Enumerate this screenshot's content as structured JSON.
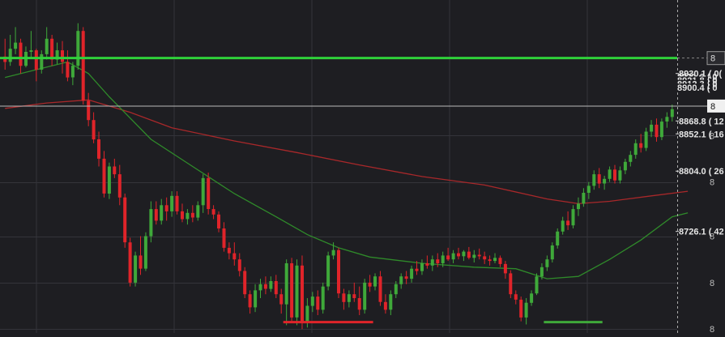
{
  "colors": {
    "background": "#1e1e22",
    "grid": "#34343a",
    "up": "#3fa93a",
    "down": "#e0242a",
    "ma_fast": "#2f8a2a",
    "ma_slow": "#a8282a",
    "h_line_green": "#2fd13a",
    "crosshair": "#bbbbbb",
    "label_text": "#e6e6e6",
    "label_bg": "#1e1e22"
  },
  "chart_data": {
    "type": "candlestick",
    "title": "",
    "xlabel": "",
    "ylabel": "",
    "ylim": [
      8595,
      9025
    ],
    "grid": true,
    "legend": "none",
    "price_labels": [
      {
        "id": "p8930",
        "value": 8930.1,
        "text": "8930.1 ( 0("
      },
      {
        "id": "p8868",
        "value": 8868.8,
        "text": "8868.8 ( 12"
      },
      {
        "id": "p8852",
        "value": 8852.1,
        "text": "8852.1 ( 16"
      },
      {
        "id": "p8804",
        "value": 8804.0,
        "text": "8804.0 ( 26"
      },
      {
        "id": "p8726",
        "value": 8726.1,
        "text": "8726.1 ( 42"
      }
    ],
    "stacked_labels_text": [
      "8931.6 ( 0",
      "8921.8 ( 0",
      "8912.3 ( 0",
      "8900.4 ( 0"
    ],
    "crosshair_value": 8888.0,
    "crosshair_label": "8",
    "horizontal_line_value": 8950.0,
    "horizontal_line_label": "8",
    "axis_tick_values": [
      8950,
      8850,
      8790,
      8720,
      8660,
      8600
    ],
    "axis_tick_labels": [
      "8",
      "8",
      "8",
      "8",
      "8",
      "8"
    ],
    "support_lines": [
      {
        "color": "down",
        "value": 8609,
        "from": 54,
        "to": 70
      },
      {
        "color": "up",
        "value": 8609,
        "from": 104,
        "to": 114
      }
    ],
    "candles": [
      [
        8952,
        8975,
        8935,
        8945
      ],
      [
        8945,
        8980,
        8940,
        8962
      ],
      [
        8962,
        8990,
        8955,
        8970
      ],
      [
        8970,
        8975,
        8930,
        8940
      ],
      [
        8940,
        8965,
        8938,
        8958
      ],
      [
        8958,
        8985,
        8950,
        8960
      ],
      [
        8960,
        8962,
        8920,
        8935
      ],
      [
        8935,
        8960,
        8930,
        8955
      ],
      [
        8955,
        8990,
        8948,
        8975
      ],
      [
        8975,
        8980,
        8940,
        8948
      ],
      [
        8948,
        8970,
        8942,
        8960
      ],
      [
        8960,
        8972,
        8930,
        8945
      ],
      [
        8945,
        8960,
        8920,
        8925
      ],
      [
        8925,
        8945,
        8915,
        8940
      ],
      [
        8940,
        8995,
        8935,
        8985
      ],
      [
        8985,
        8990,
        8890,
        8895
      ],
      [
        8895,
        8905,
        8862,
        8870
      ],
      [
        8870,
        8880,
        8840,
        8845
      ],
      [
        8845,
        8855,
        8810,
        8820
      ],
      [
        8820,
        8830,
        8770,
        8775
      ],
      [
        8775,
        8815,
        8768,
        8810
      ],
      [
        8810,
        8820,
        8795,
        8800
      ],
      [
        8800,
        8812,
        8760,
        8770
      ],
      [
        8770,
        8775,
        8705,
        8712
      ],
      [
        8712,
        8718,
        8655,
        8660
      ],
      [
        8660,
        8700,
        8655,
        8695
      ],
      [
        8695,
        8720,
        8670,
        8678
      ],
      [
        8678,
        8725,
        8675,
        8720
      ],
      [
        8720,
        8765,
        8712,
        8755
      ],
      [
        8755,
        8765,
        8735,
        8740
      ],
      [
        8740,
        8768,
        8735,
        8760
      ],
      [
        8760,
        8770,
        8740,
        8752
      ],
      [
        8752,
        8778,
        8745,
        8772
      ],
      [
        8772,
        8778,
        8748,
        8752
      ],
      [
        8752,
        8762,
        8738,
        8742
      ],
      [
        8742,
        8755,
        8735,
        8750
      ],
      [
        8750,
        8760,
        8738,
        8744
      ],
      [
        8744,
        8765,
        8740,
        8760
      ],
      [
        8760,
        8800,
        8750,
        8795
      ],
      [
        8795,
        8802,
        8748,
        8755
      ],
      [
        8755,
        8760,
        8742,
        8748
      ],
      [
        8748,
        8752,
        8725,
        8730
      ],
      [
        8730,
        8738,
        8700,
        8705
      ],
      [
        8705,
        8712,
        8690,
        8698
      ],
      [
        8698,
        8712,
        8682,
        8690
      ],
      [
        8690,
        8698,
        8668,
        8675
      ],
      [
        8675,
        8680,
        8640,
        8645
      ],
      [
        8645,
        8650,
        8620,
        8628
      ],
      [
        8628,
        8658,
        8622,
        8650
      ],
      [
        8650,
        8665,
        8640,
        8658
      ],
      [
        8658,
        8668,
        8645,
        8652
      ],
      [
        8652,
        8668,
        8648,
        8662
      ],
      [
        8662,
        8670,
        8640,
        8645
      ],
      [
        8645,
        8652,
        8620,
        8632
      ],
      [
        8632,
        8690,
        8605,
        8685
      ],
      [
        8685,
        8692,
        8610,
        8615
      ],
      [
        8615,
        8690,
        8605,
        8682
      ],
      [
        8682,
        8695,
        8600,
        8610
      ],
      [
        8610,
        8640,
        8602,
        8630
      ],
      [
        8630,
        8648,
        8622,
        8642
      ],
      [
        8642,
        8650,
        8618,
        8625
      ],
      [
        8625,
        8660,
        8620,
        8655
      ],
      [
        8655,
        8700,
        8650,
        8695
      ],
      [
        8695,
        8712,
        8690,
        8702
      ],
      [
        8702,
        8705,
        8640,
        8646
      ],
      [
        8646,
        8652,
        8625,
        8635
      ],
      [
        8635,
        8650,
        8628,
        8645
      ],
      [
        8645,
        8660,
        8635,
        8640
      ],
      [
        8640,
        8655,
        8618,
        8625
      ],
      [
        8625,
        8665,
        8620,
        8660
      ],
      [
        8660,
        8670,
        8648,
        8655
      ],
      [
        8655,
        8672,
        8650,
        8668
      ],
      [
        8668,
        8675,
        8630,
        8635
      ],
      [
        8635,
        8645,
        8620,
        8625
      ],
      [
        8625,
        8650,
        8618,
        8645
      ],
      [
        8645,
        8662,
        8640,
        8658
      ],
      [
        8658,
        8672,
        8652,
        8668
      ],
      [
        8668,
        8675,
        8658,
        8665
      ],
      [
        8665,
        8682,
        8660,
        8678
      ],
      [
        8678,
        8688,
        8670,
        8675
      ],
      [
        8675,
        8690,
        8670,
        8685
      ],
      [
        8685,
        8695,
        8678,
        8682
      ],
      [
        8682,
        8695,
        8675,
        8690
      ],
      [
        8690,
        8698,
        8680,
        8685
      ],
      [
        8685,
        8700,
        8680,
        8695
      ],
      [
        8695,
        8705,
        8688,
        8690
      ],
      [
        8690,
        8702,
        8685,
        8698
      ],
      [
        8698,
        8705,
        8690,
        8694
      ],
      [
        8694,
        8702,
        8688,
        8700
      ],
      [
        8700,
        8706,
        8690,
        8692
      ],
      [
        8692,
        8702,
        8686,
        8696
      ],
      [
        8696,
        8704,
        8690,
        8694
      ],
      [
        8694,
        8700,
        8684,
        8690
      ],
      [
        8690,
        8695,
        8682,
        8688
      ],
      [
        8688,
        8698,
        8685,
        8692
      ],
      [
        8692,
        8695,
        8680,
        8684
      ],
      [
        8684,
        8688,
        8665,
        8672
      ],
      [
        8672,
        8676,
        8640,
        8645
      ],
      [
        8645,
        8650,
        8632,
        8638
      ],
      [
        8638,
        8642,
        8610,
        8615
      ],
      [
        8615,
        8640,
        8606,
        8634
      ],
      [
        8634,
        8650,
        8630,
        8646
      ],
      [
        8646,
        8672,
        8644,
        8668
      ],
      [
        8668,
        8685,
        8664,
        8680
      ],
      [
        8680,
        8695,
        8675,
        8690
      ],
      [
        8690,
        8712,
        8686,
        8708
      ],
      [
        8708,
        8730,
        8704,
        8726
      ],
      [
        8726,
        8745,
        8722,
        8740
      ],
      [
        8740,
        8752,
        8728,
        8734
      ],
      [
        8734,
        8760,
        8730,
        8755
      ],
      [
        8755,
        8770,
        8746,
        8762
      ],
      [
        8762,
        8782,
        8758,
        8776
      ],
      [
        8776,
        8790,
        8768,
        8785
      ],
      [
        8785,
        8805,
        8780,
        8800
      ],
      [
        8800,
        8808,
        8782,
        8788
      ],
      [
        8788,
        8798,
        8780,
        8794
      ],
      [
        8794,
        8810,
        8790,
        8806
      ],
      [
        8806,
        8812,
        8788,
        8792
      ],
      [
        8792,
        8810,
        8788,
        8805
      ],
      [
        8805,
        8820,
        8800,
        8816
      ],
      [
        8816,
        8830,
        8810,
        8825
      ],
      [
        8825,
        8845,
        8820,
        8840
      ],
      [
        8840,
        8852,
        8828,
        8834
      ],
      [
        8834,
        8860,
        8830,
        8855
      ],
      [
        8855,
        8870,
        8848,
        8864
      ],
      [
        8864,
        8872,
        8842,
        8848
      ],
      [
        8848,
        8872,
        8844,
        8868
      ],
      [
        8868,
        8880,
        8860,
        8874
      ],
      [
        8874,
        8890,
        8868,
        8884
      ]
    ],
    "ma_fast": [
      [
        0,
        8925
      ],
      [
        6,
        8935
      ],
      [
        12,
        8945
      ],
      [
        16,
        8930
      ],
      [
        20,
        8900
      ],
      [
        28,
        8845
      ],
      [
        36,
        8810
      ],
      [
        44,
        8775
      ],
      [
        52,
        8745
      ],
      [
        58,
        8722
      ],
      [
        64,
        8705
      ],
      [
        70,
        8693
      ],
      [
        80,
        8685
      ],
      [
        90,
        8680
      ],
      [
        98,
        8678
      ],
      [
        104,
        8665
      ],
      [
        110,
        8668
      ],
      [
        116,
        8690
      ],
      [
        122,
        8715
      ],
      [
        128,
        8745
      ],
      [
        131,
        8750
      ]
    ],
    "ma_slow": [
      [
        0,
        8885
      ],
      [
        8,
        8892
      ],
      [
        16,
        8896
      ],
      [
        24,
        8880
      ],
      [
        32,
        8860
      ],
      [
        44,
        8843
      ],
      [
        56,
        8828
      ],
      [
        68,
        8812
      ],
      [
        80,
        8797
      ],
      [
        92,
        8786
      ],
      [
        104,
        8768
      ],
      [
        110,
        8762
      ],
      [
        116,
        8765
      ],
      [
        124,
        8772
      ],
      [
        131,
        8778
      ]
    ]
  }
}
